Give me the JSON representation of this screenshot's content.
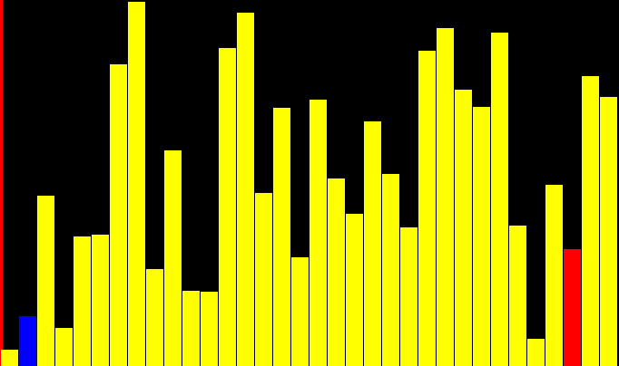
{
  "visualizer": {
    "kind": "sorting-visualization",
    "background_color": "#000000",
    "edge_marker_color": "#ff0000",
    "max_value": 400,
    "colors": {
      "default": "#ffff00",
      "compare": "#0000ff",
      "active": "#ff0000"
    },
    "bars": [
      {
        "value": 18,
        "state": "default"
      },
      {
        "value": 54,
        "state": "compare"
      },
      {
        "value": 186,
        "state": "default"
      },
      {
        "value": 42,
        "state": "default"
      },
      {
        "value": 142,
        "state": "default"
      },
      {
        "value": 144,
        "state": "default"
      },
      {
        "value": 330,
        "state": "default"
      },
      {
        "value": 398,
        "state": "default"
      },
      {
        "value": 106,
        "state": "default"
      },
      {
        "value": 236,
        "state": "default"
      },
      {
        "value": 82,
        "state": "default"
      },
      {
        "value": 81,
        "state": "default"
      },
      {
        "value": 348,
        "state": "default"
      },
      {
        "value": 386,
        "state": "default"
      },
      {
        "value": 189,
        "state": "default"
      },
      {
        "value": 282,
        "state": "default"
      },
      {
        "value": 119,
        "state": "default"
      },
      {
        "value": 291,
        "state": "default"
      },
      {
        "value": 205,
        "state": "default"
      },
      {
        "value": 166,
        "state": "default"
      },
      {
        "value": 267,
        "state": "default"
      },
      {
        "value": 210,
        "state": "default"
      },
      {
        "value": 151,
        "state": "default"
      },
      {
        "value": 345,
        "state": "default"
      },
      {
        "value": 369,
        "state": "default"
      },
      {
        "value": 302,
        "state": "default"
      },
      {
        "value": 283,
        "state": "default"
      },
      {
        "value": 364,
        "state": "default"
      },
      {
        "value": 153,
        "state": "default"
      },
      {
        "value": 30,
        "state": "default"
      },
      {
        "value": 198,
        "state": "default"
      },
      {
        "value": 128,
        "state": "active"
      },
      {
        "value": 317,
        "state": "default"
      },
      {
        "value": 294,
        "state": "default"
      }
    ]
  }
}
